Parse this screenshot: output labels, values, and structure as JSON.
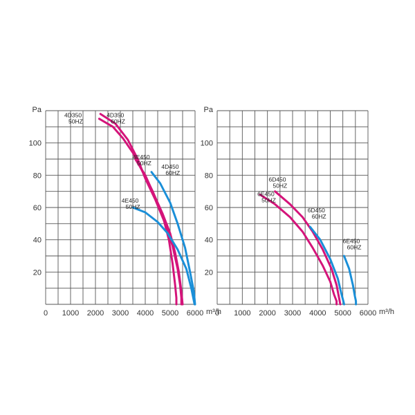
{
  "colors": {
    "magenta": "#d4147a",
    "blue": "#1a8fd8",
    "grid": "#555555"
  },
  "chart_data": [
    {
      "type": "line",
      "title": "",
      "ylabel": "Pa",
      "xlabel": "m³/h",
      "xlim": [
        0,
        6000
      ],
      "ylim": [
        0,
        120
      ],
      "grid": true,
      "x_ticks": [
        "0",
        "1000",
        "2000",
        "3000",
        "4000",
        "5000",
        "6000"
      ],
      "x_unit": "m³/h",
      "y_ticks": [
        "20",
        "40",
        "60",
        "80",
        "100"
      ],
      "y_unit": "Pa",
      "series": [
        {
          "name": "4D350 50HZ",
          "color": "#d4147a",
          "x": [
            2150,
            2700,
            3100,
            3500,
            3900,
            4300,
            4700,
            4950,
            5100,
            5200,
            5250,
            5250
          ],
          "y": [
            115,
            110,
            103,
            94,
            82,
            70,
            55,
            40,
            25,
            12,
            4,
            0
          ]
        },
        {
          "name": "4D350 60HZ",
          "color": "#d4147a",
          "x": [
            2200,
            2800,
            3300,
            3700,
            4000,
            4400,
            4800,
            5100,
            5300,
            5400,
            5450,
            5450
          ],
          "y": [
            118,
            112,
            102,
            90,
            78,
            65,
            50,
            36,
            22,
            12,
            4,
            0
          ]
        },
        {
          "name": "4E450 60HZ",
          "color": "#d4147a",
          "x": [
            3600,
            4000,
            4350,
            4700,
            5000,
            5200,
            5350,
            5450,
            5500
          ],
          "y": [
            90,
            80,
            68,
            56,
            44,
            32,
            20,
            8,
            0
          ]
        },
        {
          "name": "4E450 50HZ",
          "color": "#1a8fd8",
          "x": [
            3500,
            4000,
            4500,
            4900,
            5300,
            5650,
            5850,
            5980
          ],
          "y": [
            60,
            57,
            51,
            44,
            34,
            22,
            10,
            0
          ]
        },
        {
          "name": "4D450 60HZ",
          "color": "#1a8fd8",
          "x": [
            4250,
            4600,
            5000,
            5300,
            5600,
            5800,
            5950,
            6000
          ],
          "y": [
            82,
            75,
            63,
            50,
            35,
            20,
            8,
            0
          ]
        }
      ],
      "labels": [
        {
          "line1": "4D350",
          "line2": "50HZ",
          "x": 750,
          "y": 116
        },
        {
          "line1": "4D350",
          "line2": "60HZ",
          "x": 2450,
          "y": 116
        },
        {
          "line1": "4E450",
          "line2": "50HZ",
          "x": 3500,
          "y": 90
        },
        {
          "line1": "4D450",
          "line2": "60HZ",
          "x": 4650,
          "y": 84
        },
        {
          "line1": "4E450",
          "line2": "50HZ",
          "x": 3050,
          "y": 63
        }
      ]
    },
    {
      "type": "line",
      "title": "",
      "ylabel": "Pa",
      "xlabel": "m³/h",
      "xlim": [
        0,
        6000
      ],
      "ylim": [
        0,
        120
      ],
      "grid": true,
      "x_ticks": [
        "0",
        "1000",
        "2000",
        "3000",
        "4000",
        "5000",
        "6000"
      ],
      "x_unit": "m³/h",
      "y_ticks": [
        "20",
        "40",
        "60",
        "80",
        "100"
      ],
      "y_unit": "Pa",
      "series": [
        {
          "name": "6E450 50HZ",
          "color": "#d4147a",
          "x": [
            1700,
            2300,
            2900,
            3400,
            3800,
            4200,
            4500,
            4650,
            4750,
            4750
          ],
          "y": [
            68,
            62,
            54,
            45,
            35,
            24,
            14,
            6,
            2,
            0
          ]
        },
        {
          "name": "6D450 50HZ",
          "color": "#d4147a",
          "x": [
            2300,
            2900,
            3400,
            3800,
            4200,
            4550,
            4750,
            4850,
            4900
          ],
          "y": [
            70,
            62,
            54,
            45,
            34,
            22,
            12,
            4,
            0
          ]
        },
        {
          "name": "6D450 60HZ",
          "color": "#1a8fd8",
          "x": [
            3700,
            4100,
            4500,
            4800,
            4950,
            5020,
            5050
          ],
          "y": [
            48,
            40,
            28,
            16,
            6,
            2,
            0
          ]
        },
        {
          "name": "6E450 60HZ",
          "color": "#1a8fd8",
          "x": [
            5050,
            5250,
            5400,
            5480,
            5520,
            5520
          ],
          "y": [
            30,
            22,
            12,
            5,
            2,
            0
          ]
        }
      ],
      "labels": [
        {
          "line1": "6D450",
          "line2": "50HZ",
          "x": 2050,
          "y": 76
        },
        {
          "line1": "6E450",
          "line2": "50HZ",
          "x": 1600,
          "y": 67
        },
        {
          "line1": "6D450",
          "line2": "60HZ",
          "x": 3600,
          "y": 57
        },
        {
          "line1": "6E450",
          "line2": "60HZ",
          "x": 5000,
          "y": 38
        }
      ]
    }
  ]
}
